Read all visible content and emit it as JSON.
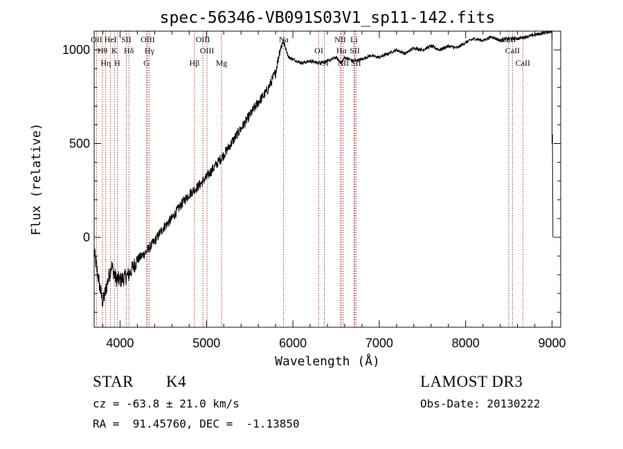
{
  "chart_data": {
    "type": "line",
    "title": "spec-56346-VB091S03V1_sp11-142.fits",
    "xlabel": "Wavelength (Å)",
    "ylabel": "Flux (relative)",
    "xlim": [
      3700,
      9100
    ],
    "ylim": [
      -480,
      1100
    ],
    "xticks": [
      4000,
      5000,
      6000,
      7000,
      8000,
      9000
    ],
    "yticks": [
      0,
      500,
      1000
    ],
    "xtick_labels": [
      "4000",
      "5000",
      "6000",
      "7000",
      "8000",
      "9000"
    ],
    "ytick_labels": [
      "0",
      "500",
      "1000"
    ],
    "spectrum_anchors": {
      "wavelength": [
        3700,
        3760,
        3800,
        3850,
        3900,
        3950,
        4000,
        4100,
        4200,
        4300,
        4400,
        4500,
        4600,
        4700,
        4800,
        4900,
        5000,
        5100,
        5200,
        5300,
        5400,
        5500,
        5600,
        5700,
        5800,
        5850,
        5890,
        5950,
        6000,
        6100,
        6200,
        6300,
        6400,
        6500,
        6560,
        6600,
        6700,
        6800,
        6900,
        7000,
        7100,
        7200,
        7300,
        7400,
        7500,
        7600,
        7700,
        7800,
        7900,
        8000,
        8100,
        8200,
        8300,
        8400,
        8500,
        8600,
        8700,
        8800,
        8900,
        9000
      ],
      "flux": [
        -80,
        -250,
        -350,
        -250,
        -150,
        -220,
        -230,
        -200,
        -120,
        -80,
        -20,
        50,
        100,
        170,
        230,
        270,
        320,
        380,
        440,
        510,
        580,
        650,
        720,
        780,
        880,
        1000,
        1050,
        960,
        950,
        930,
        940,
        930,
        940,
        960,
        930,
        960,
        940,
        950,
        970,
        960,
        980,
        1000,
        980,
        1010,
        1000,
        1020,
        1000,
        1020,
        1010,
        1040,
        1060,
        1050,
        1070,
        1050,
        1060,
        1060,
        1070,
        1080,
        1090,
        1100
      ]
    },
    "spectral_lines": [
      {
        "name": "OII",
        "wavelength": 3727
      },
      {
        "name": "Hθ",
        "wavelength": 3797
      },
      {
        "name": "Hη",
        "wavelength": 3835
      },
      {
        "name": "HeI",
        "wavelength": 3889
      },
      {
        "name": "K",
        "wavelength": 3934
      },
      {
        "name": "H",
        "wavelength": 3968
      },
      {
        "name": "SII",
        "wavelength": 4072
      },
      {
        "name": "Hδ",
        "wavelength": 4102
      },
      {
        "name": "G",
        "wavelength": 4305
      },
      {
        "name": "OIII",
        "wavelength": 4320
      },
      {
        "name": "Hγ",
        "wavelength": 4340
      },
      {
        "name": "Hβ",
        "wavelength": 4861
      },
      {
        "name": "OIII",
        "wavelength": 4959
      },
      {
        "name": "OIII",
        "wavelength": 5007
      },
      {
        "name": "Mg",
        "wavelength": 5175
      },
      {
        "name": "Na",
        "wavelength": 5893
      },
      {
        "name": "OI",
        "wavelength": 6300
      },
      {
        "name": "OI",
        "wavelength": 6364
      },
      {
        "name": "NII",
        "wavelength": 6548
      },
      {
        "name": "Hα",
        "wavelength": 6563
      },
      {
        "name": "NII",
        "wavelength": 6583
      },
      {
        "name": "Li",
        "wavelength": 6708
      },
      {
        "name": "SII",
        "wavelength": 6716
      },
      {
        "name": "SII",
        "wavelength": 6731
      },
      {
        "name": "CaII",
        "wavelength": 8498
      },
      {
        "name": "CaII",
        "wavelength": 8542
      },
      {
        "name": "CaII",
        "wavelength": 8662
      }
    ],
    "line_color": "#b22222",
    "spectrum_color": "#000000"
  },
  "info": {
    "object_class": "STAR",
    "subclass": "K4",
    "survey": "LAMOST DR3",
    "cz": "cz = -63.8 ± 21.0 km/s",
    "obs_date": "Obs-Date: 20130222",
    "coords": "RA =  91.45760, DEC =  -1.13850"
  }
}
